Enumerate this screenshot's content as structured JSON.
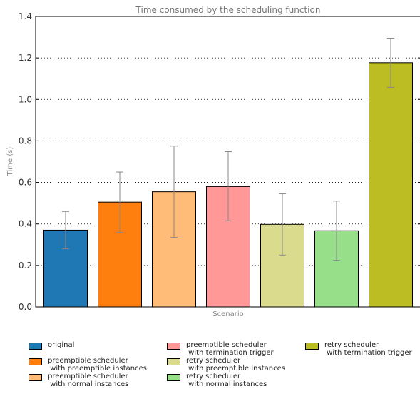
{
  "chart_data": {
    "type": "bar",
    "title": "Time consumed by the scheduling function",
    "xlabel": "Scenario",
    "ylabel": "Time (s)",
    "ylim": [
      0,
      1.4
    ],
    "yticks": [
      "0.0",
      "0.2",
      "0.4",
      "0.6",
      "0.8",
      "1.0",
      "1.2",
      "1.4"
    ],
    "grid": "horizontal dotted",
    "legend_position": "bottom",
    "series": [
      {
        "name": "original",
        "value": 0.37,
        "err_low": 0.28,
        "err_high": 0.46,
        "color": "#1f77b4"
      },
      {
        "name": "preemptible scheduler\n with preemptible instances",
        "value": 0.505,
        "err_low": 0.36,
        "err_high": 0.65,
        "color": "#ff7f0e"
      },
      {
        "name": "preemptible scheduler\n with normal instances",
        "value": 0.555,
        "err_low": 0.335,
        "err_high": 0.775,
        "color": "#ffbb78"
      },
      {
        "name": "preemptible scheduler\n with termination trigger",
        "value": 0.58,
        "err_low": 0.415,
        "err_high": 0.748,
        "color": "#ff9896"
      },
      {
        "name": "retry scheduler\n with preemptible instances",
        "value": 0.398,
        "err_low": 0.25,
        "err_high": 0.545,
        "color": "#dbdb8d"
      },
      {
        "name": "retry scheduler\n with normal instances",
        "value": 0.367,
        "err_low": 0.225,
        "err_high": 0.51,
        "color": "#98df8a"
      },
      {
        "name": "retry scheduler\n with termination trigger",
        "value": 1.177,
        "err_low": 1.058,
        "err_high": 1.295,
        "color": "#bcbd22"
      }
    ]
  }
}
